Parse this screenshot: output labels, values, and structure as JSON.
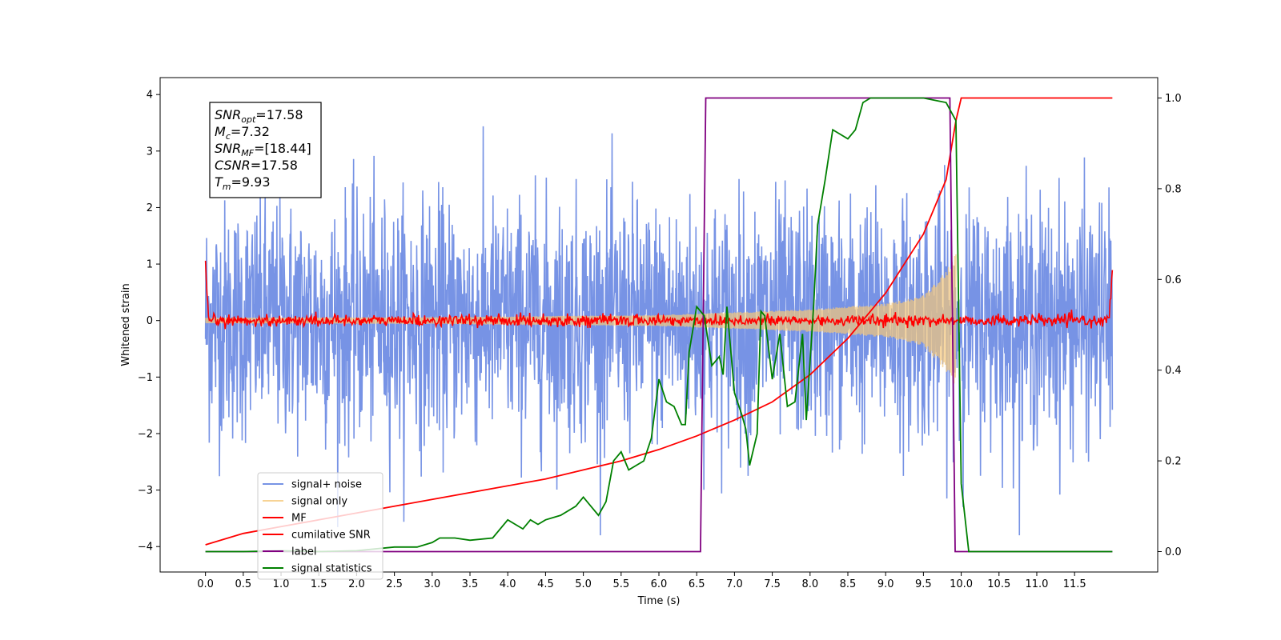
{
  "chart_data": {
    "type": "line",
    "title": "",
    "xlabel": "Time (s)",
    "ylabel": "Whitened strain",
    "xlim": [
      -0.6,
      12.6
    ],
    "ylim": [
      -4.45,
      4.3
    ],
    "y2lim": [
      -0.045,
      1.045
    ],
    "xticks": [
      0.0,
      0.5,
      1.0,
      1.5,
      2.0,
      2.5,
      3.0,
      3.5,
      4.0,
      4.5,
      5.0,
      5.5,
      6.0,
      6.5,
      7.0,
      7.5,
      8.0,
      8.5,
      9.0,
      9.5,
      10.0,
      10.5,
      11.0,
      11.5
    ],
    "xtick_labels": [
      "0.0",
      "0.5",
      "1.0",
      "1.5",
      "2.0",
      "2.5",
      "3.0",
      "3.5",
      "4.0",
      "4.5",
      "5.0",
      "5.5",
      "6.0",
      "6.5",
      "7.0",
      "7.5",
      "8.0",
      "8.5",
      "9.0",
      "9.5",
      "10.0",
      "10.5",
      "11.0",
      "11.5"
    ],
    "yticks": [
      4,
      3,
      2,
      1,
      0,
      -1,
      -2,
      -3,
      -4
    ],
    "ytick_labels": [
      "4",
      "3",
      "2",
      "1",
      "0",
      "−1",
      "−2",
      "−3",
      "−4"
    ],
    "y2ticks": [
      1.0,
      0.8,
      0.6,
      0.4,
      0.2,
      0.0
    ],
    "y2tick_labels": [
      "1.0",
      "0.8",
      "0.6",
      "0.4",
      "0.2",
      "0.0"
    ],
    "grid": false,
    "legend_position": "lower-left",
    "series": [
      {
        "name": "signal+ noise",
        "color": "#4a6fdc",
        "axis": "left",
        "kind": "noise",
        "x_range": [
          0,
          12
        ],
        "band_abs_max": 3.8,
        "band_typical": 1.5
      },
      {
        "name": "signal only",
        "color": "#f5c87a",
        "axis": "left",
        "kind": "chirp",
        "x_range": [
          0,
          9.93
        ],
        "amplitude_at": {
          "x": [
            0,
            3,
            6,
            8,
            9,
            9.5,
            9.8,
            9.93
          ],
          "y": [
            0.05,
            0.06,
            0.1,
            0.2,
            0.3,
            0.45,
            0.9,
            1.2
          ]
        }
      },
      {
        "name": "MF",
        "color": "#ff0000",
        "axis": "left",
        "kind": "noise",
        "x_range": [
          0,
          12
        ],
        "band_typical": 0.05,
        "edge_values": [
          1.0,
          0.9
        ]
      },
      {
        "name": "cumilative SNR",
        "color": "#ff0000",
        "axis": "right",
        "x": [
          0,
          0.5,
          1,
          1.5,
          2,
          2.5,
          3,
          3.5,
          4,
          4.5,
          5,
          5.5,
          6,
          6.5,
          7,
          7.5,
          8,
          8.5,
          9,
          9.5,
          9.8,
          9.93,
          10,
          12
        ],
        "y": [
          0.015,
          0.04,
          0.055,
          0.07,
          0.085,
          0.1,
          0.115,
          0.13,
          0.145,
          0.16,
          0.18,
          0.2,
          0.225,
          0.255,
          0.29,
          0.33,
          0.39,
          0.47,
          0.57,
          0.7,
          0.82,
          0.95,
          1.0,
          1.0
        ]
      },
      {
        "name": "label",
        "color": "#800080",
        "axis": "right",
        "x": [
          0,
          6.55,
          6.62,
          9.85,
          9.92,
          12
        ],
        "y": [
          0,
          0,
          1,
          1,
          0,
          0
        ]
      },
      {
        "name": "signal statistics",
        "color": "#008000",
        "axis": "right",
        "x": [
          0,
          0.5,
          1,
          1.5,
          2,
          2.5,
          2.8,
          3,
          3.1,
          3.3,
          3.5,
          3.8,
          4.0,
          4.1,
          4.2,
          4.3,
          4.4,
          4.5,
          4.7,
          4.9,
          5.0,
          5.1,
          5.2,
          5.3,
          5.4,
          5.5,
          5.6,
          5.7,
          5.8,
          5.9,
          6.0,
          6.1,
          6.2,
          6.3,
          6.35,
          6.4,
          6.5,
          6.6,
          6.7,
          6.8,
          6.85,
          6.9,
          7.0,
          7.1,
          7.15,
          7.2,
          7.3,
          7.35,
          7.4,
          7.5,
          7.6,
          7.7,
          7.8,
          7.9,
          7.95,
          8.05,
          8.1,
          8.2,
          8.3,
          8.4,
          8.5,
          8.6,
          8.7,
          8.8,
          8.9,
          9.0,
          9.5,
          9.8,
          9.93,
          10.0,
          10.1,
          12
        ],
        "y": [
          0,
          0,
          0.002,
          0,
          0.002,
          0.01,
          0.01,
          0.02,
          0.03,
          0.03,
          0.025,
          0.03,
          0.07,
          0.06,
          0.05,
          0.07,
          0.06,
          0.07,
          0.08,
          0.1,
          0.12,
          0.1,
          0.08,
          0.11,
          0.2,
          0.22,
          0.18,
          0.19,
          0.2,
          0.25,
          0.38,
          0.33,
          0.32,
          0.28,
          0.28,
          0.44,
          0.54,
          0.52,
          0.41,
          0.43,
          0.39,
          0.54,
          0.35,
          0.3,
          0.27,
          0.19,
          0.26,
          0.53,
          0.52,
          0.38,
          0.48,
          0.32,
          0.33,
          0.48,
          0.29,
          0.55,
          0.72,
          0.82,
          0.93,
          0.92,
          0.91,
          0.93,
          0.99,
          1.0,
          1.0,
          1.0,
          1.0,
          0.99,
          0.95,
          0.15,
          0.0,
          0.0
        ]
      }
    ],
    "annotations": [
      {
        "base": "SNR",
        "sub": "opt",
        "value": "=17.58"
      },
      {
        "base": "M",
        "sub": "c",
        "value": "=7.32"
      },
      {
        "base": "SNR",
        "sub": "MF",
        "value": "=[18.44]"
      },
      {
        "base": "CSNR",
        "sub": "",
        "value": "=17.58"
      },
      {
        "base": "T",
        "sub": "m",
        "value": "=9.93"
      }
    ]
  }
}
